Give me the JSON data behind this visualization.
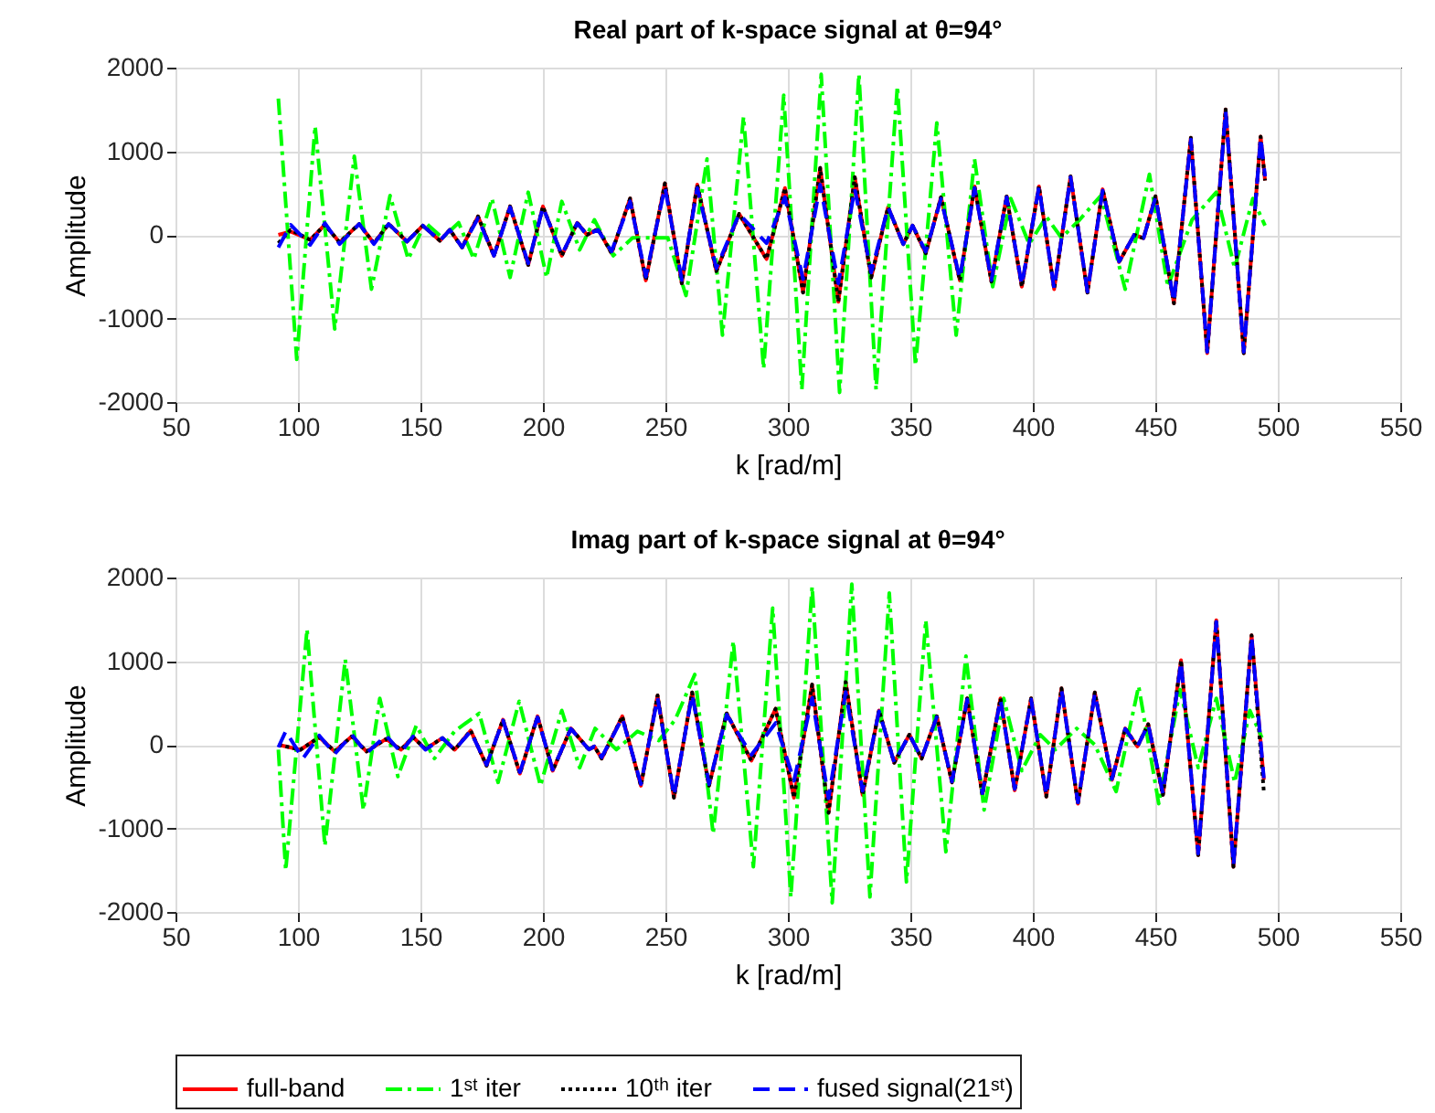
{
  "chart_data": [
    {
      "type": "line",
      "title": "Real part of k-space signal at θ=94°",
      "xlabel": "k [rad/m]",
      "ylabel": "Amplitude",
      "xlim": [
        50,
        550
      ],
      "xticks": [
        50,
        100,
        150,
        200,
        250,
        300,
        350,
        400,
        450,
        500,
        550
      ],
      "ylim": [
        -2000,
        2000
      ],
      "yticks": [
        -2000,
        -1000,
        0,
        1000,
        2000
      ],
      "grid": true,
      "series": [
        {
          "color": "#ff0000",
          "line_style": "solid",
          "x": [
            92,
            97,
            105,
            111,
            117,
            125,
            131,
            137,
            144.5,
            151,
            158,
            162,
            167,
            173.5,
            180,
            186.6,
            194,
            200,
            207.7,
            214,
            218,
            222.5,
            228,
            235.6,
            242,
            249.8,
            256.7,
            263,
            270.8,
            280.1,
            291.3,
            298.8,
            306.2,
            313.2,
            320.6,
            327.3,
            334,
            340.9,
            347.1,
            350.9,
            356.3,
            362.5,
            370.2,
            376.2,
            383.1,
            389.3,
            395.5,
            402.5,
            408.7,
            415.4,
            422.3,
            428.5,
            435.2,
            441.4,
            445.2,
            450.1,
            457.6,
            464.5,
            471.2,
            478.7,
            486.1,
            493,
            494.8
          ],
          "values": [
            0,
            40,
            -60,
            120,
            -90,
            130,
            -100,
            130,
            -80,
            110,
            -70,
            60,
            -150,
            220,
            -250,
            340,
            -360,
            340,
            -250,
            145,
            0,
            70,
            -220,
            435,
            -545,
            616,
            -580,
            600,
            -435,
            250,
            -290,
            560,
            -690,
            800,
            -800,
            690,
            -510,
            330,
            -110,
            110,
            -220,
            450,
            -545,
            580,
            -560,
            460,
            -620,
            580,
            -650,
            700,
            -690,
            545,
            -325,
            0,
            -40,
            460,
            -820,
            1160,
            -1415,
            1500,
            -1415,
            1175,
            650
          ]
        },
        {
          "color": "#00ff00",
          "line_style": "dashdot",
          "x": [
            92,
            99.5,
            107,
            115,
            123,
            130,
            137.6,
            145,
            152,
            159,
            165.6,
            171.8,
            179.2,
            186.6,
            194,
            201.5,
            207.7,
            215,
            221,
            228.7,
            236.6,
            251,
            258.4,
            267,
            273.3,
            281.9,
            290.1,
            298.3,
            305.7,
            313.6,
            321.1,
            329,
            336,
            344.7,
            352.1,
            360.8,
            368.7,
            376.2,
            383.6,
            391,
            398.5,
            405.5,
            411.7,
            419.1,
            427.8,
            437.7,
            447.6,
            455.1,
            465,
            474.9,
            482.4,
            489.8,
            494.8
          ],
          "values": [
            1630,
            -1490,
            1300,
            -1125,
            940,
            -650,
            470,
            -290,
            145,
            -36,
            145,
            -290,
            435,
            -510,
            510,
            -510,
            400,
            -180,
            180,
            -250,
            -36,
            -36,
            -725,
            906,
            -1200,
            1410,
            -1600,
            1670,
            -1850,
            1920,
            -1885,
            1920,
            -1850,
            1775,
            -1560,
            1340,
            -1200,
            906,
            -620,
            435,
            -110,
            218,
            -36,
            180,
            470,
            -650,
            725,
            -620,
            180,
            510,
            -400,
            435,
            110
          ]
        },
        {
          "color": "#000000",
          "line_style": "dotted",
          "x": [
            92,
            97,
            105,
            111,
            117,
            125,
            131,
            137,
            144.5,
            151,
            158,
            162,
            167,
            173.5,
            180,
            186.6,
            194,
            200,
            207.7,
            214,
            218,
            222.5,
            228,
            235.6,
            242,
            249.8,
            256.7,
            263,
            270.8,
            280.1,
            291.3,
            298.8,
            306.2,
            313.2,
            320.6,
            327.3,
            334,
            340.9,
            347.1,
            350.9,
            356.3,
            362.5,
            370.2,
            376.2,
            383.1,
            389.3,
            395.5,
            402.5,
            408.7,
            415.4,
            422.3,
            428.5,
            435.2,
            441.4,
            445.2,
            450.1,
            457.6,
            464.5,
            471.2,
            478.7,
            486.1,
            493,
            494.8
          ],
          "values": [
            -100,
            60,
            -60,
            120,
            -90,
            130,
            -100,
            130,
            -80,
            110,
            -70,
            60,
            -150,
            220,
            -250,
            340,
            -360,
            340,
            -250,
            145,
            0,
            70,
            -220,
            435,
            -545,
            616,
            -580,
            600,
            -435,
            250,
            -290,
            560,
            -690,
            800,
            -800,
            690,
            -510,
            330,
            -110,
            110,
            -220,
            450,
            -545,
            580,
            -560,
            460,
            -620,
            580,
            -650,
            700,
            -690,
            545,
            -325,
            0,
            -40,
            460,
            -820,
            1160,
            -1415,
            1500,
            -1415,
            1175,
            650
          ]
        },
        {
          "color": "#0000ff",
          "line_style": "dashed",
          "x": [
            92,
            97,
            105,
            111,
            117,
            125,
            131,
            137,
            144.5,
            151,
            158,
            162,
            167,
            173.5,
            180,
            186.6,
            194,
            200,
            207.7,
            214,
            218,
            222.5,
            228,
            235.6,
            242,
            249.8,
            256.7,
            263,
            270.8,
            280.1,
            291.3,
            298.8,
            306.2,
            313.2,
            320.6,
            327.3,
            334,
            340.9,
            347.1,
            350.9,
            356.3,
            362.5,
            370.2,
            376.2,
            383.1,
            389.3,
            395.5,
            402.5,
            408.7,
            415.4,
            422.3,
            428.5,
            435.2,
            441.4,
            445.2,
            450.1,
            457.6,
            464.5,
            471.2,
            478.7,
            486.1,
            493,
            494.8
          ],
          "values": [
            -150,
            120,
            -120,
            140,
            -110,
            130,
            -110,
            130,
            -80,
            110,
            -70,
            60,
            -150,
            200,
            -250,
            330,
            -340,
            330,
            -240,
            140,
            0,
            60,
            -200,
            400,
            -500,
            570,
            -540,
            560,
            -400,
            250,
            -100,
            450,
            -530,
            600,
            -580,
            550,
            -450,
            330,
            -110,
            110,
            -200,
            430,
            -520,
            560,
            -540,
            450,
            -600,
            570,
            -640,
            690,
            -680,
            530,
            -320,
            0,
            -40,
            450,
            -800,
            1140,
            -1400,
            1480,
            -1400,
            1160,
            700
          ]
        }
      ]
    },
    {
      "type": "line",
      "title": "Imag part of k-space signal at θ=94°",
      "xlabel": "k [rad/m]",
      "ylabel": "Amplitude",
      "xlim": [
        50,
        550
      ],
      "xticks": [
        50,
        100,
        150,
        200,
        250,
        300,
        350,
        400,
        450,
        500,
        550
      ],
      "ylim": [
        -2000,
        2000
      ],
      "yticks": [
        -2000,
        -1000,
        0,
        1000,
        2000
      ],
      "grid": true,
      "legend": "bottom",
      "series": [
        {
          "name": "full-band",
          "color": "#ff0000",
          "line_style": "solid",
          "x": [
            92,
            101,
            108.7,
            115,
            122,
            128,
            136,
            142,
            147,
            152,
            159,
            164,
            170.5,
            177,
            183.7,
            190.6,
            197.8,
            204,
            211.4,
            218.8,
            221,
            224,
            232.4,
            240,
            246.8,
            253.5,
            260.9,
            267.8,
            275,
            285.1,
            295,
            302.5,
            309.9,
            316.6,
            323.6,
            330.5,
            337.2,
            343.4,
            349.6,
            354.6,
            360.8,
            367,
            373.2,
            379.4,
            386.8,
            392.6,
            399.3,
            405.5,
            411.7,
            418.4,
            425.3,
            432.3,
            437.7,
            442.7,
            447.1,
            453.1,
            460.5,
            467.5,
            474.9,
            481.9,
            489.3,
            494.3
          ],
          "values": [
            0,
            -60,
            90,
            -80,
            100,
            -80,
            70,
            -60,
            90,
            -50,
            80,
            -60,
            170,
            -250,
            300,
            -345,
            340,
            -310,
            195,
            -58,
            -20,
            -165,
            340,
            -490,
            590,
            -634,
            626,
            -490,
            375,
            -190,
            430,
            -634,
            720,
            -815,
            750,
            -600,
            410,
            -216,
            120,
            -165,
            340,
            -450,
            555,
            -600,
            555,
            -545,
            555,
            -620,
            675,
            -705,
            626,
            -420,
            195,
            -20,
            245,
            -600,
            1010,
            -1320,
            1490,
            -1460,
            1310,
            -420
          ]
        },
        {
          "name": "1ˢᵗ iter",
          "color": "#00ff00",
          "line_style": "dashdot",
          "x": [
            92,
            95,
            103.7,
            111,
            119.3,
            126.7,
            133.4,
            140.8,
            148.3,
            155.7,
            163.9,
            174,
            181.7,
            190.3,
            199,
            207.7,
            215,
            221.3,
            230,
            238.6,
            247.3,
            254,
            262,
            269.5,
            277.7,
            285.9,
            293.8,
            301.2,
            309.9,
            318.1,
            326.1,
            333.5,
            341.4,
            348.4,
            356.3,
            364.5,
            372.7,
            380.1,
            388.1,
            395.5,
            403,
            409.2,
            417.9,
            425.3,
            434,
            443.2,
            451.4,
            460.1,
            467.5,
            474.9,
            482.4,
            488.6,
            493.5
          ],
          "values": [
            -58,
            -1500,
            1380,
            -1210,
            1020,
            -780,
            555,
            -380,
            230,
            -165,
            160,
            375,
            -450,
            520,
            -490,
            410,
            -275,
            195,
            -58,
            160,
            50,
            300,
            840,
            -1065,
            1240,
            -1460,
            1635,
            -1820,
            1890,
            -1890,
            1920,
            -1820,
            1815,
            -1640,
            1490,
            -1280,
            1060,
            -780,
            555,
            -310,
            120,
            -58,
            195,
            0,
            -560,
            700,
            -705,
            660,
            -275,
            555,
            -450,
            410,
            85
          ]
        },
        {
          "name": "10ᵗʰ iter",
          "color": "#000000",
          "line_style": "dotted",
          "x": [
            92,
            101,
            108.7,
            115,
            122,
            128,
            136,
            142,
            147,
            152,
            159,
            164,
            170.5,
            177,
            183.7,
            190.6,
            197.8,
            204,
            211.4,
            218.8,
            221,
            224,
            232.4,
            240,
            246.8,
            253.5,
            260.9,
            267.8,
            275,
            285.1,
            295,
            302.5,
            309.9,
            316.6,
            323.6,
            330.5,
            337.2,
            343.4,
            349.6,
            354.6,
            360.8,
            367,
            373.2,
            379.4,
            386.8,
            392.6,
            399.3,
            405.5,
            411.7,
            418.4,
            425.3,
            432.3,
            437.7,
            442.7,
            447.1,
            453.1,
            460.5,
            467.5,
            474.9,
            481.9,
            489.3,
            494.3
          ],
          "values": [
            0,
            -60,
            90,
            -80,
            100,
            -80,
            70,
            -60,
            90,
            -50,
            80,
            -60,
            170,
            -250,
            300,
            -345,
            340,
            -310,
            195,
            -58,
            -20,
            -165,
            340,
            -490,
            590,
            -634,
            626,
            -490,
            375,
            -190,
            430,
            -634,
            720,
            -815,
            750,
            -600,
            410,
            -216,
            120,
            -165,
            340,
            -450,
            555,
            -600,
            555,
            -545,
            555,
            -620,
            675,
            -705,
            626,
            -420,
            195,
            -20,
            245,
            -600,
            1010,
            -1320,
            1490,
            -1460,
            1310,
            -560
          ]
        },
        {
          "name": "fused signal(21ˢᵗ)",
          "color": "#0000ff",
          "line_style": "dashed",
          "x": [
            92,
            95,
            102,
            108.7,
            115,
            122,
            128,
            136,
            142,
            147,
            152,
            159,
            164,
            170.5,
            177,
            183.7,
            190.6,
            197.8,
            204,
            211.4,
            218.8,
            221,
            224,
            232.4,
            240,
            246.8,
            253.5,
            260.9,
            267.8,
            275,
            285.1,
            295,
            302.5,
            309.9,
            316.6,
            323.6,
            330.5,
            337.2,
            343.4,
            349.6,
            354.6,
            360.8,
            367,
            373.2,
            379.4,
            386.8,
            392.6,
            399.3,
            405.5,
            411.7,
            418.4,
            425.3,
            432.3,
            437.7,
            442.7,
            447.1,
            453.1,
            460.5,
            467.5,
            474.9,
            481.9,
            489.3,
            494.3
          ],
          "values": [
            -30,
            160,
            -165,
            110,
            -110,
            120,
            -100,
            110,
            -90,
            100,
            -60,
            80,
            -60,
            160,
            -240,
            290,
            -330,
            330,
            -300,
            190,
            -58,
            -20,
            -150,
            320,
            -470,
            560,
            -610,
            600,
            -470,
            360,
            -120,
            260,
            -430,
            560,
            -640,
            630,
            -550,
            400,
            -210,
            120,
            -160,
            330,
            -440,
            540,
            -580,
            540,
            -530,
            540,
            -600,
            660,
            -690,
            610,
            -410,
            190,
            -20,
            240,
            -580,
            990,
            -1300,
            1470,
            -1440,
            1290,
            -400
          ]
        }
      ]
    }
  ]
}
